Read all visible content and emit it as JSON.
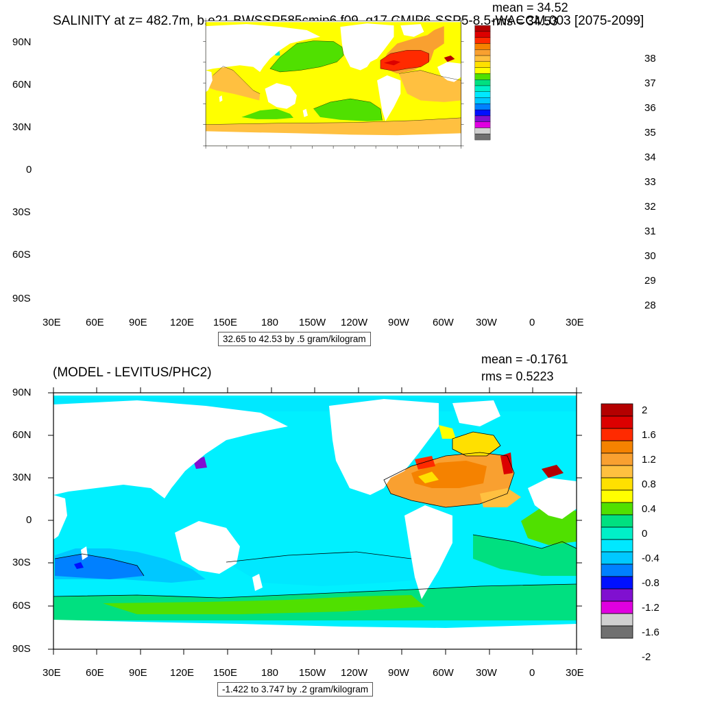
{
  "top": {
    "title": "SALINITY at z= 482.7m, b.e21.BWSSP585cmip6.f09_g17.CMIP6-SSP5-8.5-WACCM.003 [2075-2099]",
    "mean": "mean = 34.52",
    "rms": "rms = 34.53",
    "contour_info": "32.65 to 42.53 by .5 gram/kilogram",
    "colorbar": {
      "labels": [
        "38",
        "37",
        "36",
        "35",
        "34",
        "33",
        "32",
        "31",
        "30",
        "29",
        "28"
      ],
      "colors": [
        "#b40000",
        "#dc0000",
        "#ff2a00",
        "#f58200",
        "#f9a030",
        "#ffc040",
        "#ffe000",
        "#ffff00",
        "#50e000",
        "#00e080",
        "#00f0c8",
        "#00e8ff",
        "#00c8ff",
        "#0080ff",
        "#0010ff",
        "#8010d0",
        "#e000e0",
        "#d0d0d0",
        "#707070"
      ]
    }
  },
  "bottom": {
    "title": "(MODEL - LEVITUS/PHC2)",
    "mean": "mean = -0.1761",
    "rms": "rms = 0.5223",
    "contour_info": "-1.422 to 3.747 by .2 gram/kilogram",
    "colorbar": {
      "labels": [
        "2",
        "1.6",
        "1.2",
        "0.8",
        "0.4",
        "0",
        "-0.4",
        "-0.8",
        "-1.2",
        "-1.6",
        "-2"
      ],
      "colors": [
        "#b40000",
        "#dc0000",
        "#ff2a00",
        "#f58200",
        "#f9a030",
        "#ffc040",
        "#ffe000",
        "#ffff00",
        "#50e000",
        "#00e080",
        "#00f0c8",
        "#00e8ff",
        "#00c8ff",
        "#0080ff",
        "#0010ff",
        "#8010d0",
        "#e000e0",
        "#d0d0d0",
        "#707070"
      ]
    }
  },
  "axes": {
    "lat_labels": [
      "90N",
      "60N",
      "30N",
      "0",
      "30S",
      "60S",
      "90S"
    ],
    "lon_labels": [
      "30E",
      "60E",
      "90E",
      "120E",
      "150E",
      "180",
      "150W",
      "120W",
      "90W",
      "60W",
      "30W",
      "0",
      "30E"
    ]
  }
}
